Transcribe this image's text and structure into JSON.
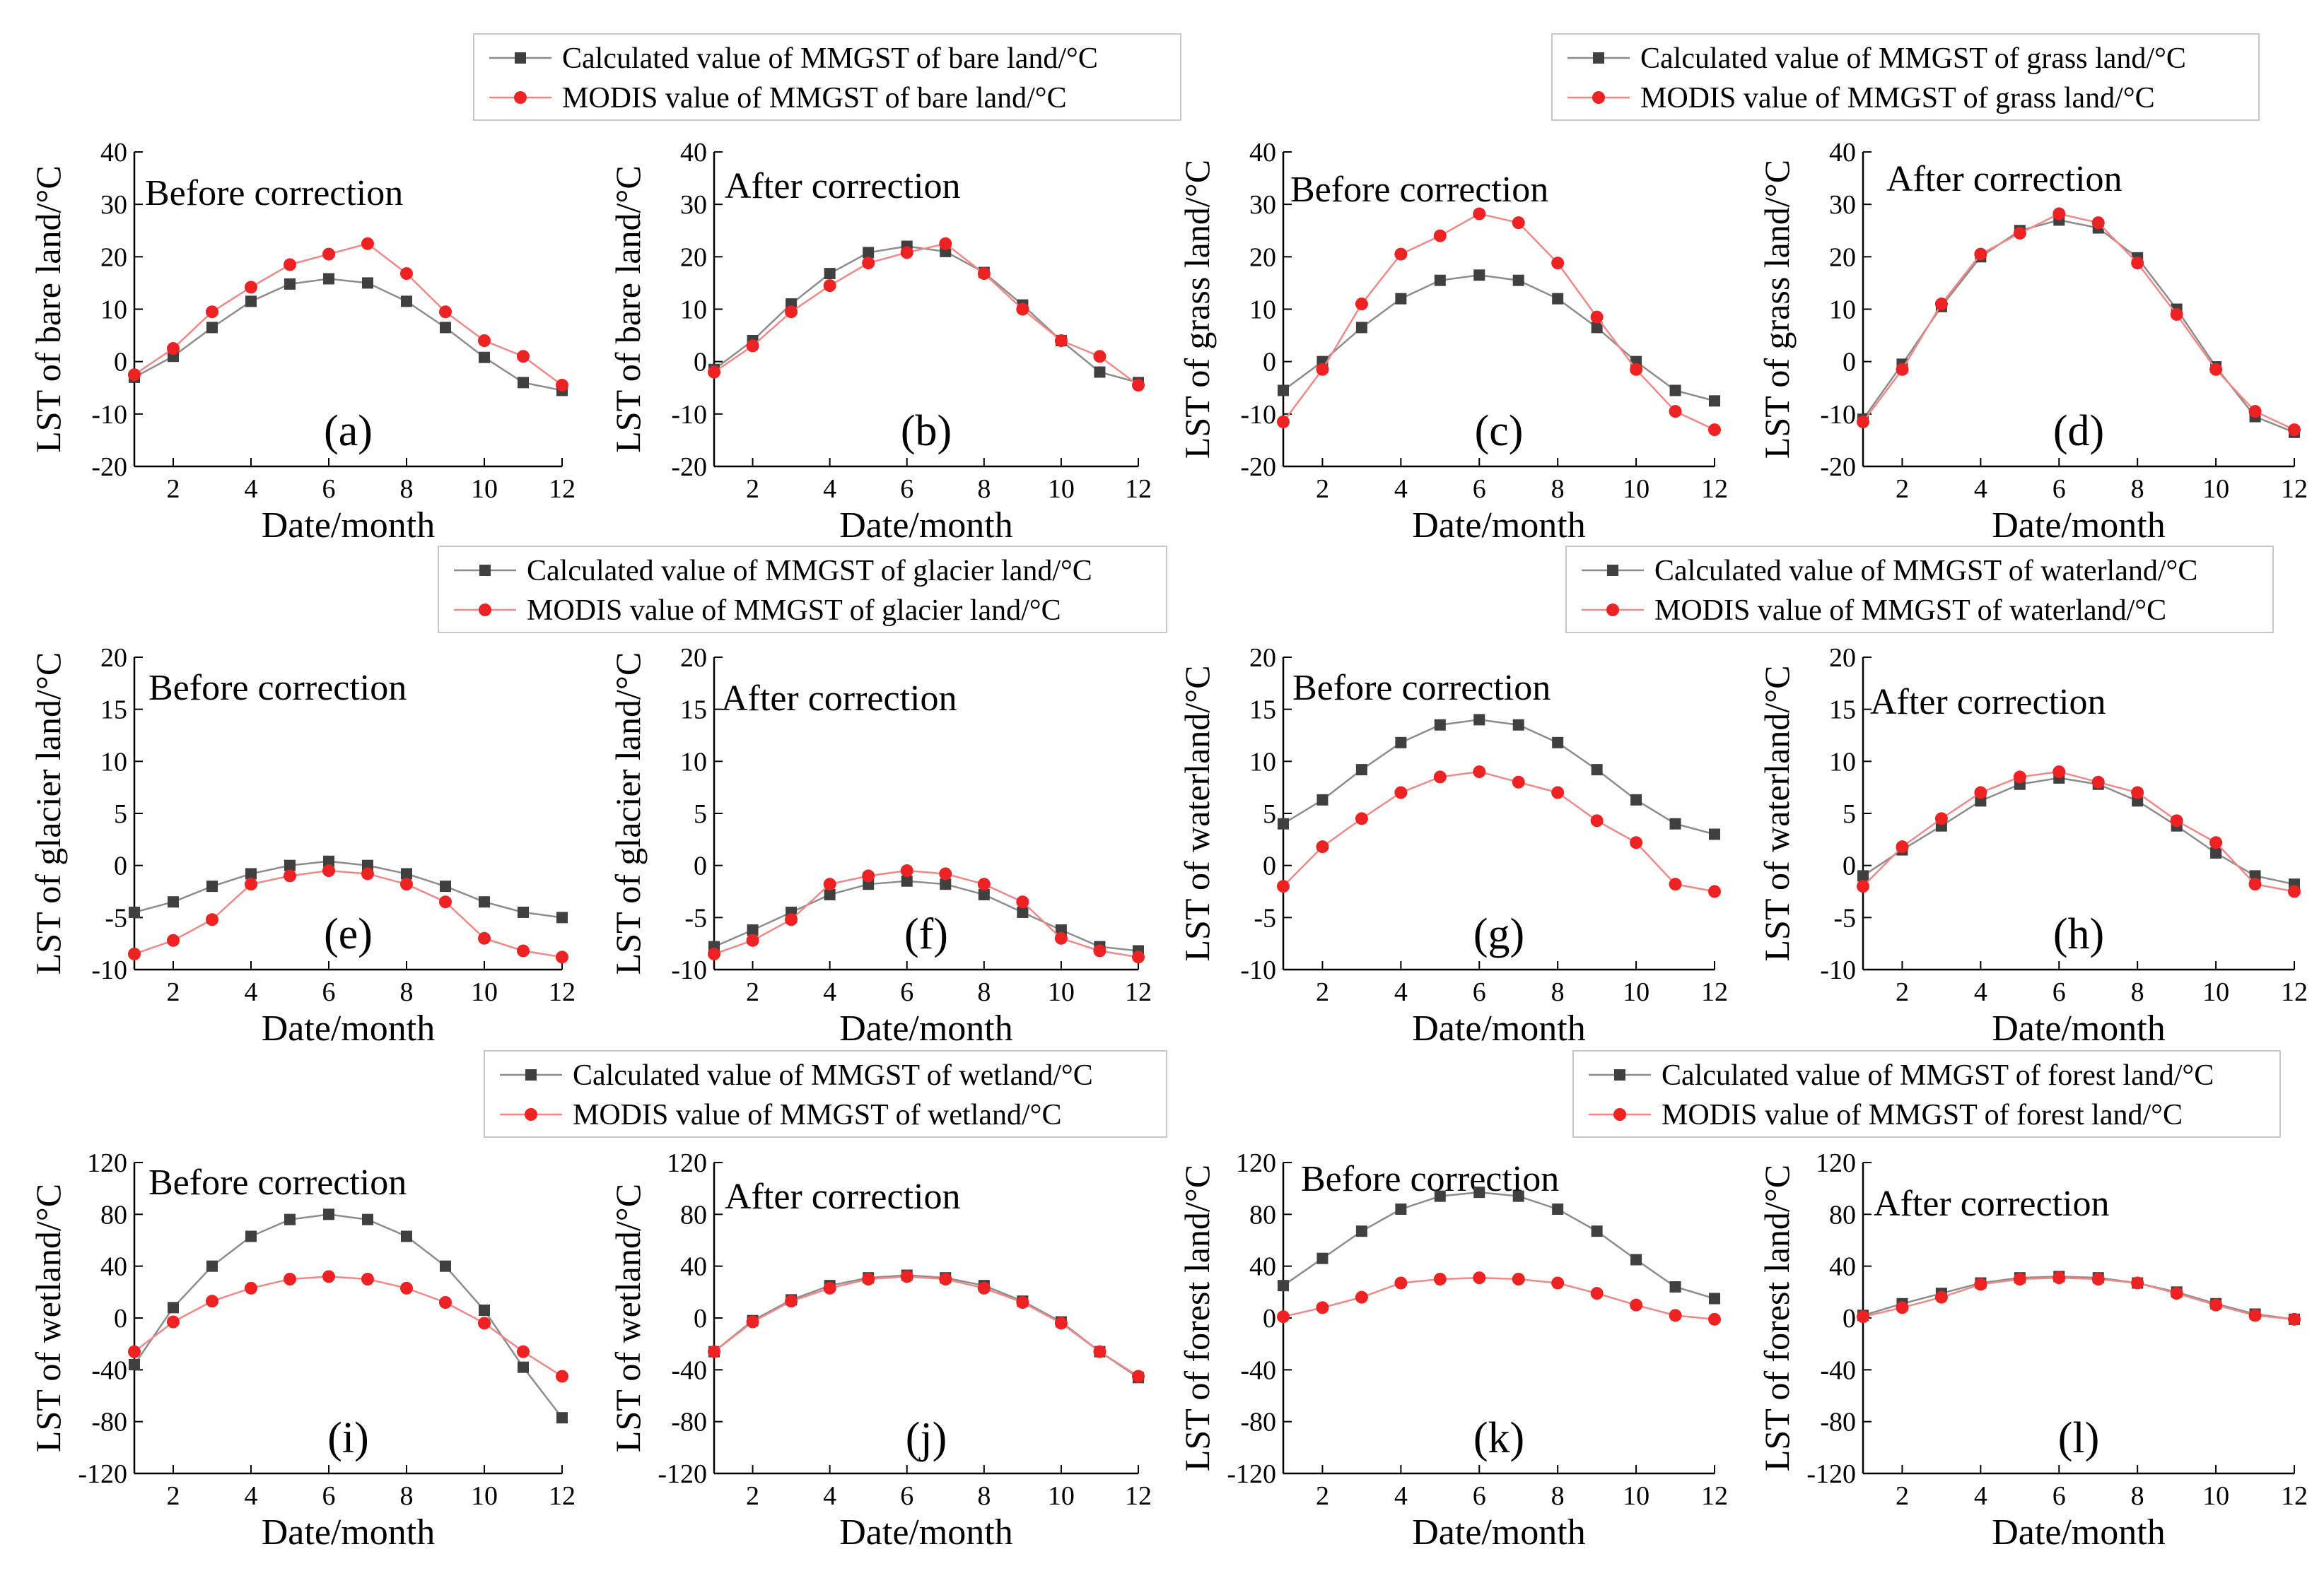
{
  "colors": {
    "calculated": "#404040",
    "modis": "#ee2222",
    "calc_line": "#8c8c8c",
    "modis_line": "#f08888",
    "axis": "#000000",
    "legend_border": "#c8c8c8"
  },
  "legends": [
    {
      "id": "bare",
      "calc_label": "Calculated value of MMGST of bare land/°C",
      "modis_label": "MODIS value of MMGST of bare land/°C"
    },
    {
      "id": "grass",
      "calc_label": "Calculated value of MMGST of grass land/°C",
      "modis_label": "MODIS value of MMGST of grass land/°C"
    },
    {
      "id": "glacier",
      "calc_label": "Calculated value of MMGST of glacier land/°C",
      "modis_label": "MODIS value of MMGST of glacier land/°C"
    },
    {
      "id": "water",
      "calc_label": "Calculated value of MMGST of waterland/°C",
      "modis_label": "MODIS value of MMGST of waterland/°C"
    },
    {
      "id": "wetland",
      "calc_label": "Calculated value of MMGST of wetland/°C",
      "modis_label": "MODIS value of MMGST of wetland/°C"
    },
    {
      "id": "forest",
      "calc_label": "Calculated value of MMGST of forest land/°C",
      "modis_label": "MODIS value of MMGST of forest land/°C"
    }
  ],
  "chart_data": [
    {
      "type": "line",
      "panel": "(a)",
      "annotation": "Before correction",
      "xlabel": "Date/month",
      "ylabel": "LST of bare land/°C",
      "xlim": [
        1,
        12
      ],
      "xticks": [
        2,
        4,
        6,
        8,
        10,
        12
      ],
      "ylim": [
        -20,
        40
      ],
      "yticks": [
        -20,
        -10,
        0,
        10,
        20,
        30,
        40
      ],
      "x": [
        1,
        2,
        3,
        4,
        5,
        6,
        7,
        8,
        9,
        10,
        11,
        12
      ],
      "series": [
        {
          "name": "Calculated value of MMGST of bare land/°C",
          "values": [
            -3,
            1,
            6.5,
            11.5,
            14.8,
            15.8,
            15,
            11.5,
            6.5,
            0.8,
            -4,
            -5.5
          ]
        },
        {
          "name": "MODIS value of MMGST of bare land/°C",
          "values": [
            -2.5,
            2.5,
            9.5,
            14.2,
            18.5,
            20.5,
            22.5,
            16.8,
            9.5,
            4,
            1,
            -4.5
          ]
        }
      ]
    },
    {
      "type": "line",
      "panel": "(b)",
      "annotation": "After correction",
      "xlabel": "Date/month",
      "ylabel": "LST of bare land/°C",
      "xlim": [
        1,
        12
      ],
      "xticks": [
        2,
        4,
        6,
        8,
        10,
        12
      ],
      "ylim": [
        -20,
        40
      ],
      "yticks": [
        -20,
        -10,
        0,
        10,
        20,
        30,
        40
      ],
      "x": [
        1,
        2,
        3,
        4,
        5,
        6,
        7,
        8,
        9,
        10,
        11,
        12
      ],
      "series": [
        {
          "name": "Calculated value of MMGST of bare land/°C",
          "values": [
            -1.5,
            4,
            11,
            16.8,
            20.8,
            22,
            21,
            17,
            10.8,
            4,
            -2,
            -4
          ]
        },
        {
          "name": "MODIS value of MMGST of bare land/°C",
          "values": [
            -2,
            3,
            9.5,
            14.5,
            18.8,
            20.8,
            22.5,
            16.8,
            10,
            4,
            1,
            -4.5
          ]
        }
      ]
    },
    {
      "type": "line",
      "panel": "(c)",
      "annotation": "Before correction",
      "xlabel": "Date/month",
      "ylabel": "LST of grass land/°C",
      "xlim": [
        1,
        12
      ],
      "xticks": [
        2,
        4,
        6,
        8,
        10,
        12
      ],
      "ylim": [
        -20,
        40
      ],
      "yticks": [
        -20,
        -10,
        0,
        10,
        20,
        30,
        40
      ],
      "x": [
        1,
        2,
        3,
        4,
        5,
        6,
        7,
        8,
        9,
        10,
        11,
        12
      ],
      "series": [
        {
          "name": "Calculated value of MMGST of grass land/°C",
          "values": [
            -5.5,
            0,
            6.5,
            12,
            15.5,
            16.5,
            15.5,
            12,
            6.5,
            0,
            -5.5,
            -7.5
          ]
        },
        {
          "name": "MODIS value of MMGST of grass land/°C",
          "values": [
            -11.5,
            -1.5,
            11,
            20.5,
            24,
            28.2,
            26.5,
            18.8,
            8.5,
            -1.5,
            -9.5,
            -13
          ]
        }
      ]
    },
    {
      "type": "line",
      "panel": "(d)",
      "annotation": "After correction",
      "xlabel": "Date/month",
      "ylabel": "LST of grass land/°C",
      "xlim": [
        1,
        12
      ],
      "xticks": [
        2,
        4,
        6,
        8,
        10,
        12
      ],
      "ylim": [
        -20,
        40
      ],
      "yticks": [
        -20,
        -10,
        0,
        10,
        20,
        30,
        40
      ],
      "x": [
        1,
        2,
        3,
        4,
        5,
        6,
        7,
        8,
        9,
        10,
        11,
        12
      ],
      "series": [
        {
          "name": "Calculated value of MMGST of grass land/°C",
          "values": [
            -11,
            -0.5,
            10.5,
            20,
            25,
            27,
            25.5,
            19.8,
            10,
            -1,
            -10.5,
            -13.5
          ]
        },
        {
          "name": "MODIS value of MMGST of grass land/°C",
          "values": [
            -11.5,
            -1.5,
            11,
            20.5,
            24.5,
            28.2,
            26.5,
            18.8,
            9,
            -1.5,
            -9.5,
            -13
          ]
        }
      ]
    },
    {
      "type": "line",
      "panel": "(e)",
      "annotation": "Before correction",
      "xlabel": "Date/month",
      "ylabel": "LST of glacier land/°C",
      "xlim": [
        1,
        12
      ],
      "xticks": [
        2,
        4,
        6,
        8,
        10,
        12
      ],
      "ylim": [
        -10,
        20
      ],
      "yticks": [
        -10,
        -5,
        0,
        5,
        10,
        15,
        20
      ],
      "x": [
        1,
        2,
        3,
        4,
        5,
        6,
        7,
        8,
        9,
        10,
        11,
        12
      ],
      "series": [
        {
          "name": "Calculated value of MMGST of glacier land/°C",
          "values": [
            -4.5,
            -3.5,
            -2,
            -0.8,
            0,
            0.4,
            0,
            -0.8,
            -2,
            -3.5,
            -4.5,
            -5
          ]
        },
        {
          "name": "MODIS value of MMGST of glacier land/°C",
          "values": [
            -8.5,
            -7.2,
            -5.2,
            -1.8,
            -1,
            -0.5,
            -0.8,
            -1.8,
            -3.5,
            -7,
            -8.2,
            -8.8
          ]
        }
      ]
    },
    {
      "type": "line",
      "panel": "(f)",
      "annotation": "After correction",
      "xlabel": "Date/month",
      "ylabel": "LST of glacier land/°C",
      "xlim": [
        1,
        12
      ],
      "xticks": [
        2,
        4,
        6,
        8,
        10,
        12
      ],
      "ylim": [
        -10,
        20
      ],
      "yticks": [
        -10,
        -5,
        0,
        5,
        10,
        15,
        20
      ],
      "x": [
        1,
        2,
        3,
        4,
        5,
        6,
        7,
        8,
        9,
        10,
        11,
        12
      ],
      "series": [
        {
          "name": "Calculated value of MMGST of glacier land/°C",
          "values": [
            -7.8,
            -6.2,
            -4.5,
            -2.8,
            -1.8,
            -1.5,
            -1.8,
            -2.8,
            -4.5,
            -6.2,
            -7.8,
            -8.2
          ]
        },
        {
          "name": "MODIS value of MMGST of glacier land/°C",
          "values": [
            -8.5,
            -7.2,
            -5.2,
            -1.8,
            -1,
            -0.5,
            -0.8,
            -1.8,
            -3.5,
            -7,
            -8.2,
            -8.8
          ]
        }
      ]
    },
    {
      "type": "line",
      "panel": "(g)",
      "annotation": "Before correction",
      "xlabel": "Date/month",
      "ylabel": "LST of waterland/°C",
      "xlim": [
        1,
        12
      ],
      "xticks": [
        2,
        4,
        6,
        8,
        10,
        12
      ],
      "ylim": [
        -10,
        20
      ],
      "yticks": [
        -10,
        -5,
        0,
        5,
        10,
        15,
        20
      ],
      "x": [
        1,
        2,
        3,
        4,
        5,
        6,
        7,
        8,
        9,
        10,
        11,
        12
      ],
      "series": [
        {
          "name": "Calculated value of MMGST of waterland/°C",
          "values": [
            4,
            6.3,
            9.2,
            11.8,
            13.5,
            14,
            13.5,
            11.8,
            9.2,
            6.3,
            4,
            3
          ]
        },
        {
          "name": "MODIS value of MMGST of waterland/°C",
          "values": [
            -2,
            1.8,
            4.5,
            7,
            8.5,
            9,
            8,
            7,
            4.3,
            2.2,
            -1.8,
            -2.5
          ]
        }
      ]
    },
    {
      "type": "line",
      "panel": "(h)",
      "annotation": "After correction",
      "xlabel": "Date/month",
      "ylabel": "LST of waterland/°C",
      "xlim": [
        1,
        12
      ],
      "xticks": [
        2,
        4,
        6,
        8,
        10,
        12
      ],
      "ylim": [
        -10,
        20
      ],
      "yticks": [
        -10,
        -5,
        0,
        5,
        10,
        15,
        20
      ],
      "x": [
        1,
        2,
        3,
        4,
        5,
        6,
        7,
        8,
        9,
        10,
        11,
        12
      ],
      "series": [
        {
          "name": "Calculated value of MMGST of waterland/°C",
          "values": [
            -1,
            1.5,
            3.8,
            6.2,
            7.8,
            8.4,
            7.8,
            6.2,
            3.8,
            1.2,
            -1,
            -1.8
          ]
        },
        {
          "name": "MODIS value of MMGST of waterland/°C",
          "values": [
            -2,
            1.8,
            4.5,
            7,
            8.5,
            9,
            8,
            7,
            4.3,
            2.2,
            -1.8,
            -2.5
          ]
        }
      ]
    },
    {
      "type": "line",
      "panel": "(i)",
      "annotation": "Before correction",
      "xlabel": "Date/month",
      "ylabel": "LST of wetland/°C",
      "xlim": [
        1,
        12
      ],
      "xticks": [
        2,
        4,
        6,
        8,
        10,
        12
      ],
      "ylim": [
        -120,
        120
      ],
      "yticks": [
        -120,
        -80,
        -40,
        0,
        40,
        80,
        120
      ],
      "x": [
        1,
        2,
        3,
        4,
        5,
        6,
        7,
        8,
        9,
        10,
        11,
        12
      ],
      "series": [
        {
          "name": "Calculated value of MMGST of wetland/°C",
          "values": [
            -36,
            8,
            40,
            63,
            76,
            80,
            76,
            63,
            40,
            6,
            -38,
            -77
          ]
        },
        {
          "name": "MODIS value of MMGST of wetland/°C",
          "values": [
            -26,
            -3,
            13,
            23,
            30,
            32,
            30,
            23,
            12,
            -4,
            -26,
            -45
          ]
        }
      ]
    },
    {
      "type": "line",
      "panel": "(j)",
      "annotation": "After correction",
      "xlabel": "Date/month",
      "ylabel": "LST of wetland/°C",
      "xlim": [
        1,
        12
      ],
      "xticks": [
        2,
        4,
        6,
        8,
        10,
        12
      ],
      "ylim": [
        -120,
        120
      ],
      "yticks": [
        -120,
        -80,
        -40,
        0,
        40,
        80,
        120
      ],
      "x": [
        1,
        2,
        3,
        4,
        5,
        6,
        7,
        8,
        9,
        10,
        11,
        12
      ],
      "series": [
        {
          "name": "Calculated value of MMGST of wetland/°C",
          "values": [
            -26,
            -2,
            14,
            25,
            31,
            33,
            31,
            25,
            13,
            -3,
            -26,
            -46
          ]
        },
        {
          "name": "MODIS value of MMGST of wetland/°C",
          "values": [
            -26,
            -3,
            13,
            23,
            30,
            32,
            30,
            23,
            12,
            -4,
            -26,
            -45
          ]
        }
      ]
    },
    {
      "type": "line",
      "panel": "(k)",
      "annotation": "Before correction",
      "xlabel": "Date/month",
      "ylabel": "LST of forest land/°C",
      "xlim": [
        1,
        12
      ],
      "xticks": [
        2,
        4,
        6,
        8,
        10,
        12
      ],
      "ylim": [
        -120,
        120
      ],
      "yticks": [
        -120,
        -80,
        -40,
        0,
        40,
        80,
        120
      ],
      "x": [
        1,
        2,
        3,
        4,
        5,
        6,
        7,
        8,
        9,
        10,
        11,
        12
      ],
      "series": [
        {
          "name": "Calculated value of MMGST of forest land/°C",
          "values": [
            25,
            46,
            67,
            84,
            94,
            97,
            94,
            84,
            67,
            45,
            24,
            15
          ]
        },
        {
          "name": "MODIS value of MMGST of forest land/°C",
          "values": [
            1,
            8,
            16,
            27,
            30,
            31,
            30,
            27,
            19,
            10,
            2,
            -1
          ]
        }
      ]
    },
    {
      "type": "line",
      "panel": "(l)",
      "annotation": "After correction",
      "xlabel": "Date/month",
      "ylabel": "LST of forest land/°C",
      "xlim": [
        1,
        12
      ],
      "xticks": [
        2,
        4,
        6,
        8,
        10,
        12
      ],
      "ylim": [
        -120,
        120
      ],
      "yticks": [
        -120,
        -80,
        -40,
        0,
        40,
        80,
        120
      ],
      "x": [
        1,
        2,
        3,
        4,
        5,
        6,
        7,
        8,
        9,
        10,
        11,
        12
      ],
      "series": [
        {
          "name": "Calculated value of MMGST of forest land/°C",
          "values": [
            2,
            11,
            19,
            27,
            31,
            32,
            31,
            27,
            20,
            11,
            3,
            -1
          ]
        },
        {
          "name": "MODIS value of MMGST of forest land/°C",
          "values": [
            1,
            8,
            16,
            26,
            30,
            31,
            30,
            27,
            19,
            10,
            2,
            -1
          ]
        }
      ]
    }
  ]
}
